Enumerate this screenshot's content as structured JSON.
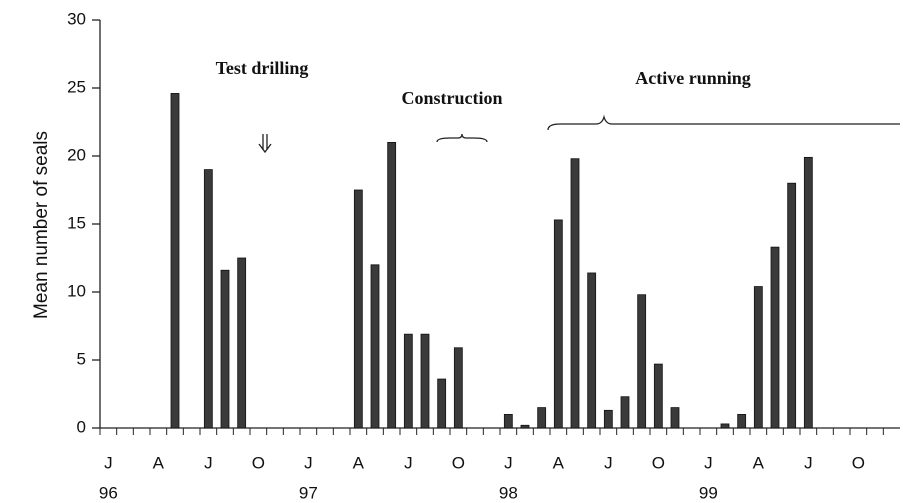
{
  "chart_data": {
    "type": "bar",
    "y_label": "Mean number of seals",
    "categories": [
      "J",
      null,
      null,
      "A",
      null,
      null,
      "J",
      null,
      null,
      "O",
      null,
      null,
      "J",
      null,
      null,
      "A",
      null,
      null,
      "J",
      null,
      null,
      "O",
      null,
      null,
      "J",
      null,
      null,
      "A",
      null,
      null,
      "J",
      null,
      null,
      "O",
      null,
      null,
      "J",
      null,
      null,
      "A",
      null,
      null,
      "J",
      null,
      null,
      "O",
      null,
      null
    ],
    "year_labels": [
      "96",
      "97",
      "98",
      "99"
    ],
    "values": [
      null,
      null,
      null,
      null,
      24.6,
      null,
      19,
      11.6,
      12.5,
      null,
      null,
      null,
      null,
      null,
      null,
      17.5,
      12,
      21,
      6.9,
      6.9,
      3.6,
      5.9,
      null,
      null,
      1.0,
      0.2,
      1.5,
      15.3,
      19.8,
      11.4,
      1.3,
      2.3,
      9.8,
      4.7,
      1.5,
      null,
      null,
      0.3,
      1.0,
      10.4,
      13.3,
      18,
      19.9,
      null,
      null,
      null,
      null,
      null
    ],
    "color": "#3a3a3a",
    "ylim": [
      0,
      30
    ],
    "yticks": [
      0,
      5,
      10,
      15,
      20,
      25,
      30
    ],
    "annotations": [
      "Test drilling",
      "Construction",
      "Active running"
    ]
  }
}
